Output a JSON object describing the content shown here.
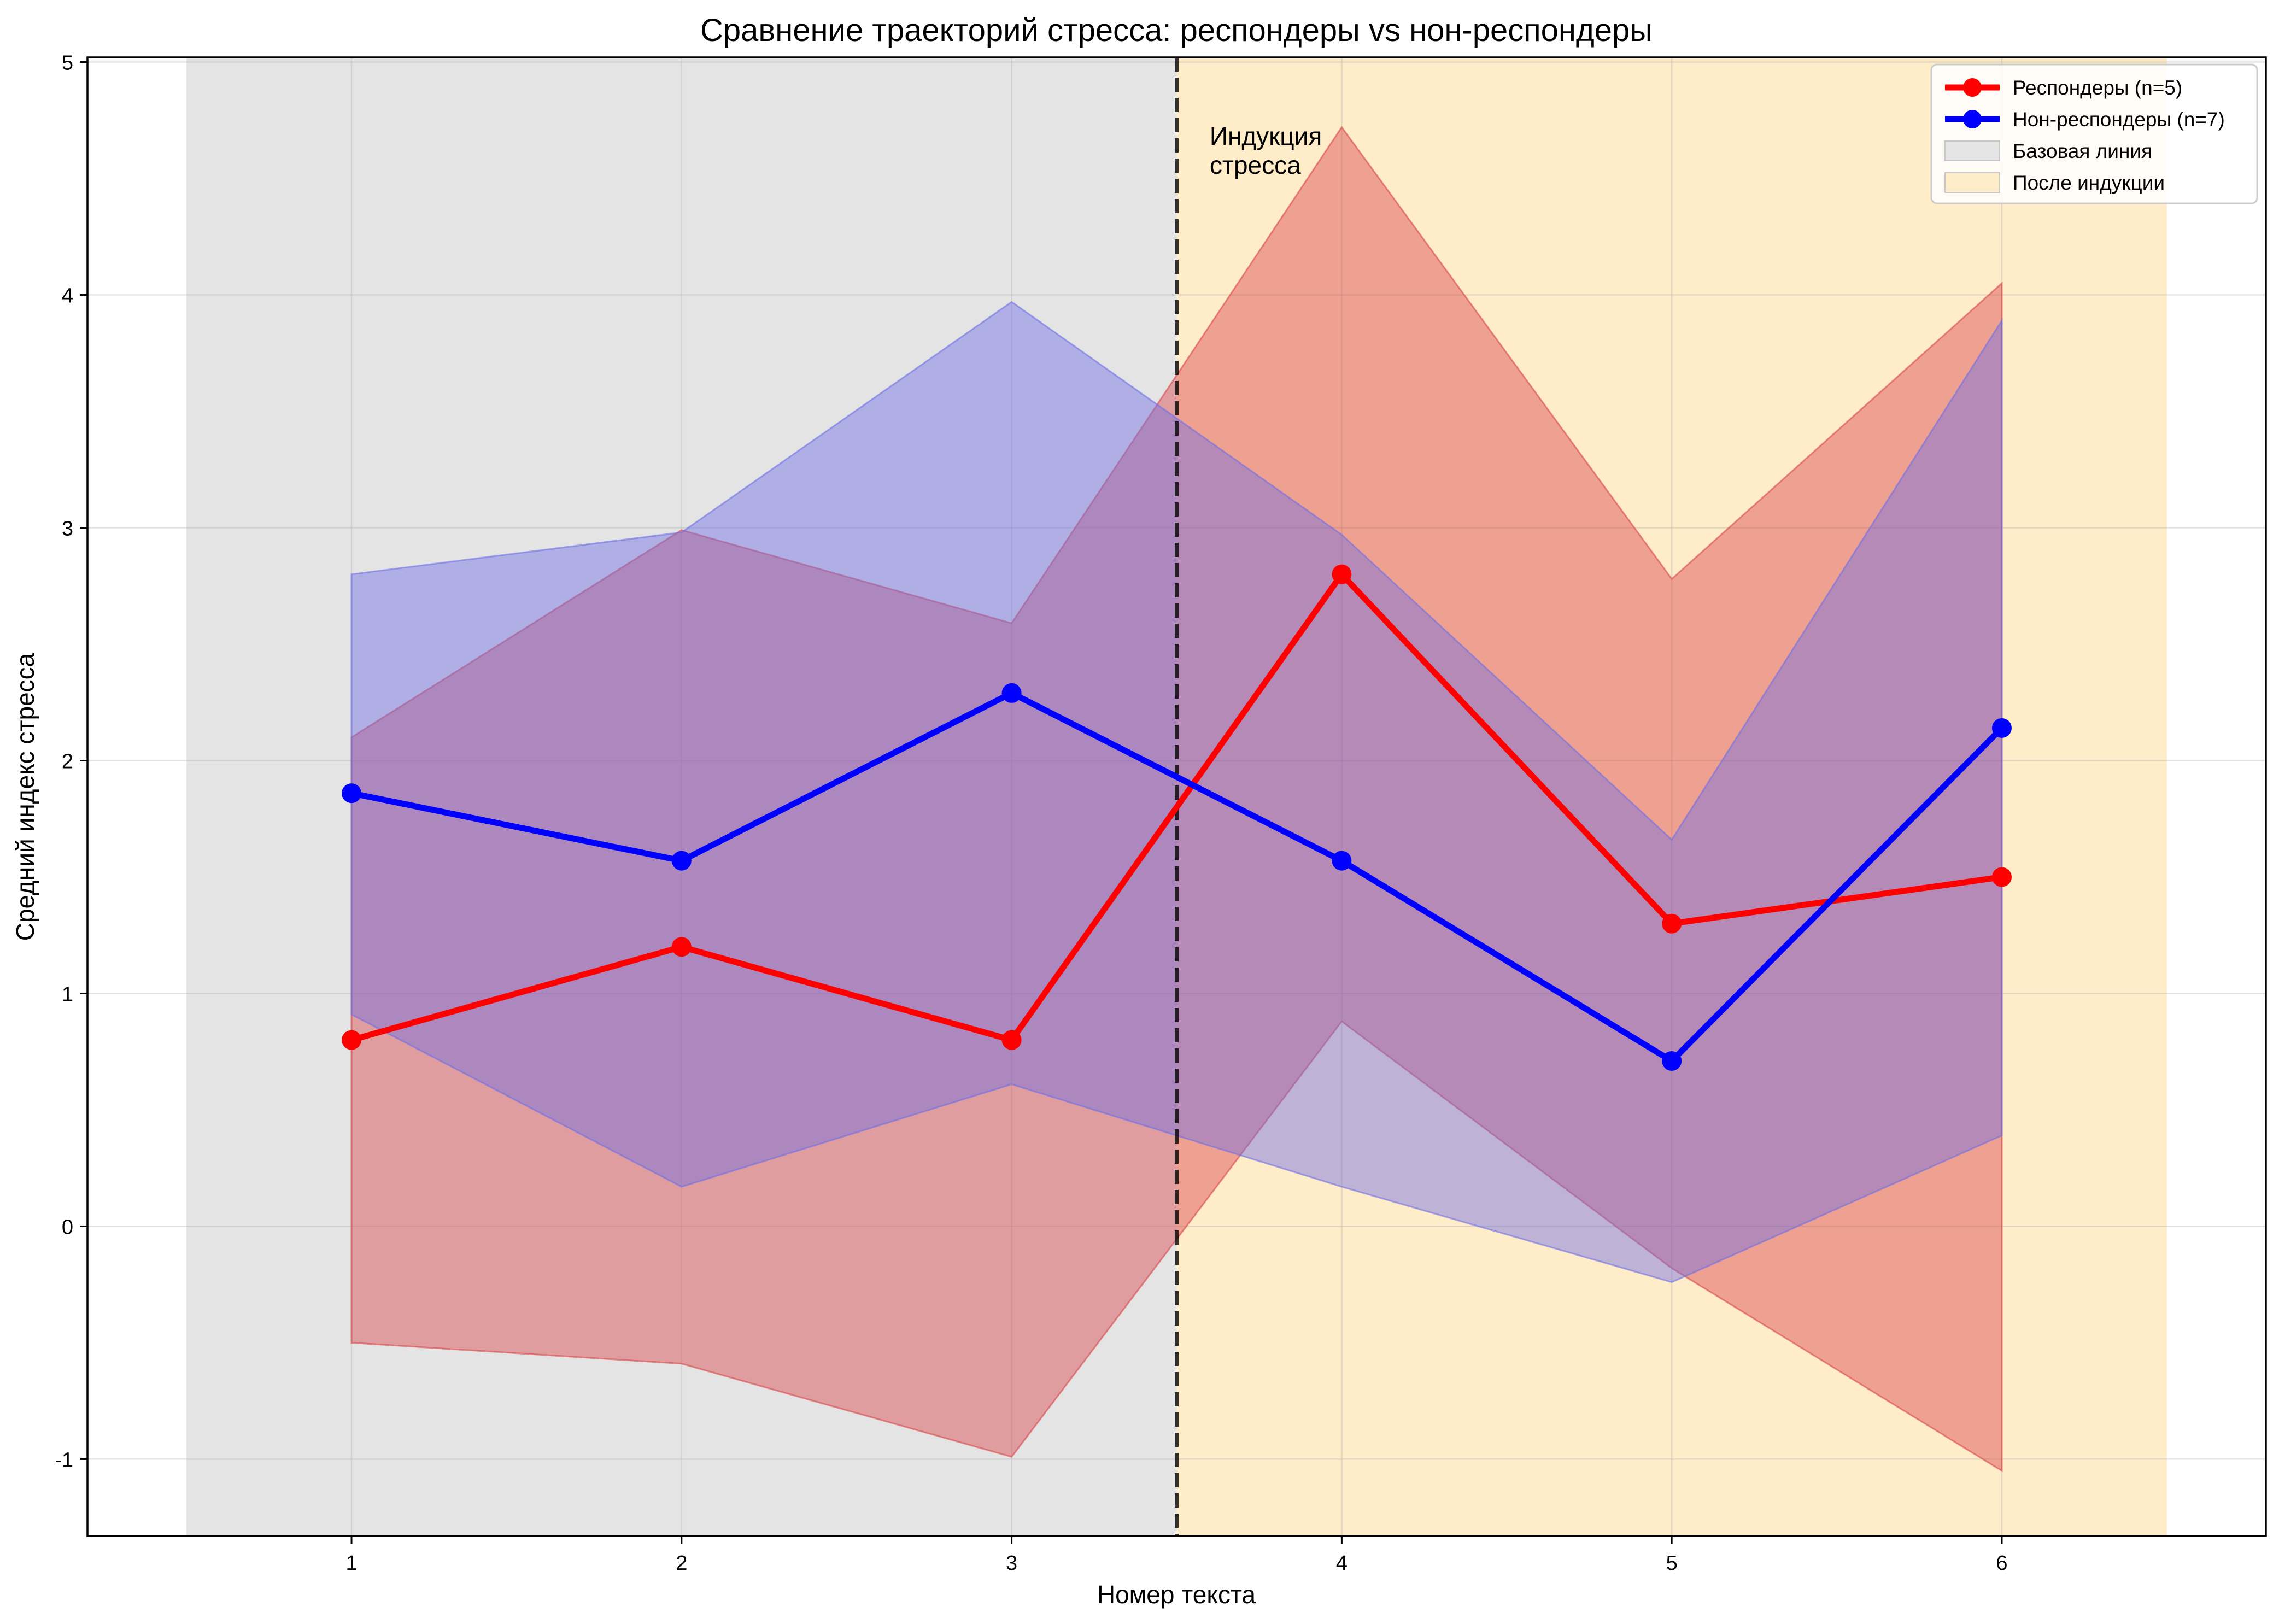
{
  "chart_data": {
    "type": "line",
    "title": "Сравнение траекторий стресса: респондеры vs нон-респондеры",
    "xlabel": "Номер текста",
    "ylabel": "Средний индекс стресса",
    "xlim": [
      0.2,
      6.8
    ],
    "ylim": [
      -1.33,
      5.02
    ],
    "x": [
      1,
      2,
      3,
      4,
      5,
      6
    ],
    "xticks": [
      "1",
      "2",
      "3",
      "4",
      "5",
      "6"
    ],
    "yticks": [
      -1,
      0,
      1,
      2,
      3,
      4,
      5
    ],
    "grid": true,
    "legend_position": "top-right",
    "series": [
      {
        "name": "Респондеры (n=5)",
        "color": "#ff0000",
        "band_color": "#d9474b",
        "values": [
          0.8,
          1.2,
          0.8,
          2.8,
          1.3,
          1.5
        ],
        "band_upper": [
          2.1,
          2.99,
          2.59,
          4.72,
          2.78,
          4.05
        ],
        "band_lower": [
          -0.5,
          -0.59,
          -0.99,
          0.88,
          -0.18,
          -1.05
        ]
      },
      {
        "name": "Нон-респондеры (n=7)",
        "color": "#0000ff",
        "band_color": "#6f6fe6",
        "values": [
          1.86,
          1.57,
          2.29,
          1.57,
          0.71,
          2.14
        ],
        "band_upper": [
          2.8,
          2.98,
          3.97,
          2.97,
          1.66,
          3.89
        ],
        "band_lower": [
          0.91,
          0.17,
          0.61,
          0.17,
          -0.24,
          0.39
        ]
      }
    ],
    "regions": [
      {
        "name": "Базовая линия",
        "from": 0.5,
        "to": 3.5,
        "color": "#e4e4e4"
      },
      {
        "name": "После индукции",
        "from": 3.5,
        "to": 6.5,
        "color": "#ffecc8"
      }
    ],
    "vline": {
      "x": 3.5
    },
    "annotation": {
      "x": 3.6,
      "lines": [
        "Индукция",
        "стресса"
      ]
    }
  }
}
